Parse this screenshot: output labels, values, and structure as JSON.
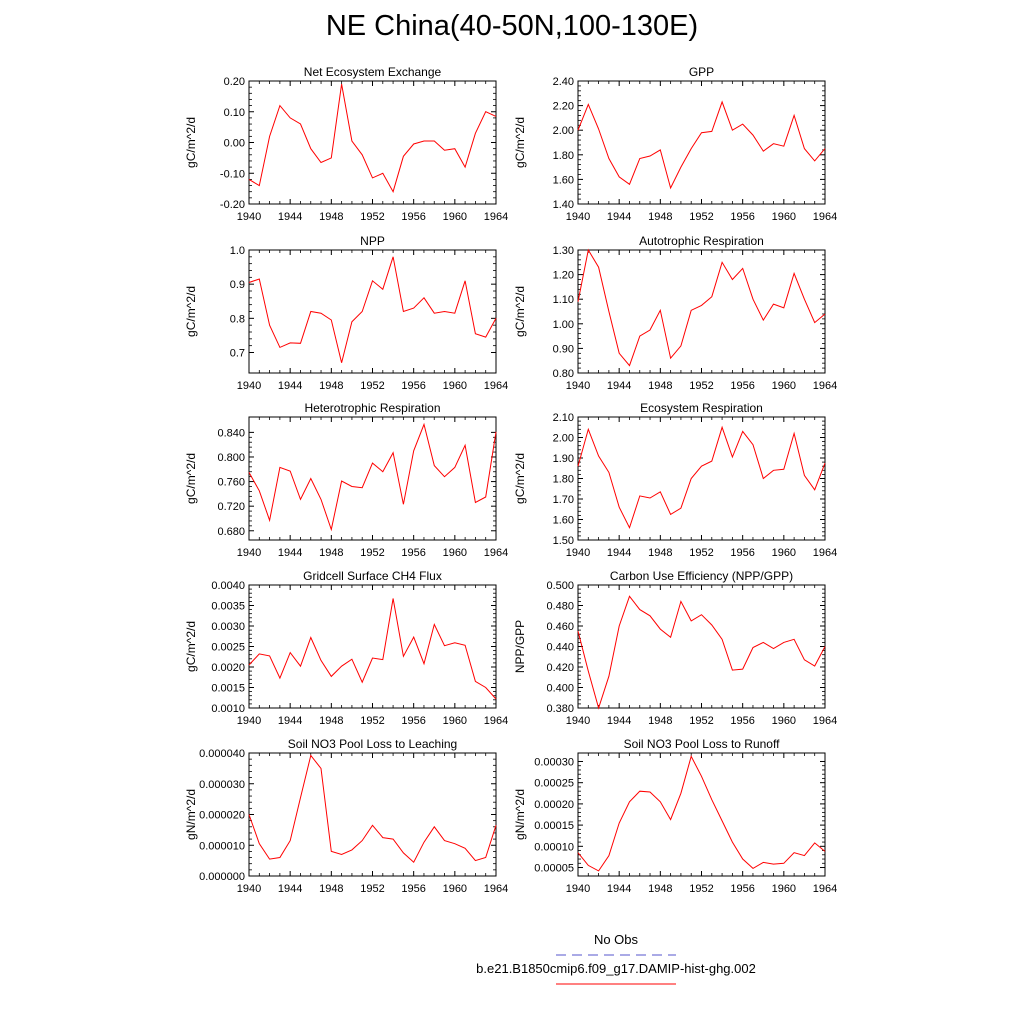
{
  "page_title": "NE China(40-50N,100-130E)",
  "legend": {
    "no_obs_label": "No Obs",
    "no_obs_color": "#5555cc",
    "model_label": "b.e21.B1850cmip6.f09_g17.DAMIP-hist-ghg.002",
    "model_color": "#ff0000"
  },
  "chart_data": [
    {
      "type": "line",
      "title": "Net Ecosystem Exchange",
      "ylabel": "gC/m^2/d",
      "ylim": [
        -0.2,
        0.2
      ],
      "yticks": [
        -0.2,
        -0.1,
        0.0,
        0.1,
        0.2
      ],
      "ytick_labels": [
        "-0.20",
        "-0.10",
        "0.00",
        "0.10",
        "0.20"
      ],
      "xlim": [
        1940,
        1964
      ],
      "xticks": [
        1940,
        1944,
        1948,
        1952,
        1956,
        1960,
        1964
      ],
      "xtick_labels": [
        "1940",
        "1944",
        "1948",
        "1952",
        "1956",
        "1960",
        "1964"
      ],
      "series": [
        {
          "x": [
            1940,
            1941,
            1942,
            1943,
            1944,
            1945,
            1946,
            1947,
            1948,
            1949,
            1950,
            1951,
            1952,
            1953,
            1954,
            1955,
            1956,
            1957,
            1958,
            1959,
            1960,
            1961,
            1962,
            1963,
            1964
          ],
          "values": [
            -0.12,
            -0.14,
            0.02,
            0.12,
            0.08,
            0.06,
            -0.02,
            -0.065,
            -0.05,
            0.19,
            0.005,
            -0.04,
            -0.115,
            -0.1,
            -0.16,
            -0.045,
            -0.005,
            0.005,
            0.005,
            -0.025,
            -0.02,
            -0.08,
            0.03,
            0.1,
            0.085
          ]
        }
      ]
    },
    {
      "type": "line",
      "title": "GPP",
      "ylabel": "gC/m^2/d",
      "ylim": [
        1.4,
        2.4
      ],
      "yticks": [
        1.4,
        1.6,
        1.8,
        2.0,
        2.2,
        2.4
      ],
      "ytick_labels": [
        "1.40",
        "1.60",
        "1.80",
        "2.00",
        "2.20",
        "2.40"
      ],
      "xlim": [
        1940,
        1964
      ],
      "xticks": [
        1940,
        1944,
        1948,
        1952,
        1956,
        1960,
        1964
      ],
      "xtick_labels": [
        "1940",
        "1944",
        "1948",
        "1952",
        "1956",
        "1960",
        "1964"
      ],
      "series": [
        {
          "x": [
            1940,
            1941,
            1942,
            1943,
            1944,
            1945,
            1946,
            1947,
            1948,
            1949,
            1950,
            1951,
            1952,
            1953,
            1954,
            1955,
            1956,
            1957,
            1958,
            1959,
            1960,
            1961,
            1962,
            1963,
            1964
          ],
          "values": [
            2.0,
            2.21,
            2.01,
            1.77,
            1.62,
            1.56,
            1.77,
            1.79,
            1.84,
            1.53,
            1.7,
            1.85,
            1.98,
            1.99,
            2.23,
            2.0,
            2.05,
            1.96,
            1.83,
            1.89,
            1.87,
            2.12,
            1.85,
            1.75,
            1.85
          ]
        }
      ]
    },
    {
      "type": "line",
      "title": "NPP",
      "ylabel": "gC/m^2/d",
      "ylim": [
        0.64,
        1.0
      ],
      "yticks": [
        0.7,
        0.8,
        0.9,
        1.0
      ],
      "ytick_labels": [
        "0.7",
        "0.8",
        "0.9",
        "1.0"
      ],
      "xlim": [
        1940,
        1964
      ],
      "xticks": [
        1940,
        1944,
        1948,
        1952,
        1956,
        1960,
        1964
      ],
      "xtick_labels": [
        "1940",
        "1944",
        "1948",
        "1952",
        "1956",
        "1960",
        "1964"
      ],
      "series": [
        {
          "x": [
            1940,
            1941,
            1942,
            1943,
            1944,
            1945,
            1946,
            1947,
            1948,
            1949,
            1950,
            1951,
            1952,
            1953,
            1954,
            1955,
            1956,
            1957,
            1958,
            1959,
            1960,
            1961,
            1962,
            1963,
            1964
          ],
          "values": [
            0.905,
            0.915,
            0.78,
            0.715,
            0.728,
            0.727,
            0.82,
            0.815,
            0.795,
            0.67,
            0.79,
            0.82,
            0.91,
            0.885,
            0.98,
            0.82,
            0.83,
            0.86,
            0.815,
            0.82,
            0.815,
            0.91,
            0.755,
            0.745,
            0.8
          ]
        }
      ]
    },
    {
      "type": "line",
      "title": "Autotrophic Respiration",
      "ylabel": "gC/m^2/d",
      "ylim": [
        0.8,
        1.3
      ],
      "yticks": [
        0.8,
        0.9,
        1.0,
        1.1,
        1.2,
        1.3
      ],
      "ytick_labels": [
        "0.80",
        "0.90",
        "1.00",
        "1.10",
        "1.20",
        "1.30"
      ],
      "xlim": [
        1940,
        1964
      ],
      "xticks": [
        1940,
        1944,
        1948,
        1952,
        1956,
        1960,
        1964
      ],
      "xtick_labels": [
        "1940",
        "1944",
        "1948",
        "1952",
        "1956",
        "1960",
        "1964"
      ],
      "series": [
        {
          "x": [
            1940,
            1941,
            1942,
            1943,
            1944,
            1945,
            1946,
            1947,
            1948,
            1949,
            1950,
            1951,
            1952,
            1953,
            1954,
            1955,
            1956,
            1957,
            1958,
            1959,
            1960,
            1961,
            1962,
            1963,
            1964
          ],
          "values": [
            1.09,
            1.3,
            1.23,
            1.05,
            0.88,
            0.83,
            0.95,
            0.975,
            1.055,
            0.86,
            0.91,
            1.055,
            1.075,
            1.11,
            1.25,
            1.18,
            1.225,
            1.1,
            1.015,
            1.08,
            1.065,
            1.205,
            1.1,
            1.005,
            1.04
          ]
        }
      ]
    },
    {
      "type": "line",
      "title": "Heterotrophic Respiration",
      "ylabel": "gC/m^2/d",
      "ylim": [
        0.665,
        0.865
      ],
      "yticks": [
        0.68,
        0.72,
        0.76,
        0.8,
        0.84
      ],
      "ytick_labels": [
        "0.680",
        "0.720",
        "0.760",
        "0.800",
        "0.840"
      ],
      "xlim": [
        1940,
        1964
      ],
      "xticks": [
        1940,
        1944,
        1948,
        1952,
        1956,
        1960,
        1964
      ],
      "xtick_labels": [
        "1940",
        "1944",
        "1948",
        "1952",
        "1956",
        "1960",
        "1964"
      ],
      "series": [
        {
          "x": [
            1940,
            1941,
            1942,
            1943,
            1944,
            1945,
            1946,
            1947,
            1948,
            1949,
            1950,
            1951,
            1952,
            1953,
            1954,
            1955,
            1956,
            1957,
            1958,
            1959,
            1960,
            1961,
            1962,
            1963,
            1964
          ],
          "values": [
            0.775,
            0.745,
            0.697,
            0.783,
            0.777,
            0.731,
            0.765,
            0.731,
            0.682,
            0.761,
            0.752,
            0.75,
            0.79,
            0.776,
            0.807,
            0.723,
            0.81,
            0.853,
            0.786,
            0.768,
            0.783,
            0.819,
            0.726,
            0.735,
            0.841
          ]
        }
      ]
    },
    {
      "type": "line",
      "title": "Ecosystem Respiration",
      "ylabel": "gC/m^2/d",
      "ylim": [
        1.5,
        2.1
      ],
      "yticks": [
        1.5,
        1.6,
        1.7,
        1.8,
        1.9,
        2.0,
        2.1
      ],
      "ytick_labels": [
        "1.50",
        "1.60",
        "1.70",
        "1.80",
        "1.90",
        "2.00",
        "2.10"
      ],
      "xlim": [
        1940,
        1964
      ],
      "xticks": [
        1940,
        1944,
        1948,
        1952,
        1956,
        1960,
        1964
      ],
      "xtick_labels": [
        "1940",
        "1944",
        "1948",
        "1952",
        "1956",
        "1960",
        "1964"
      ],
      "series": [
        {
          "x": [
            1940,
            1941,
            1942,
            1943,
            1944,
            1945,
            1946,
            1947,
            1948,
            1949,
            1950,
            1951,
            1952,
            1953,
            1954,
            1955,
            1956,
            1957,
            1958,
            1959,
            1960,
            1961,
            1962,
            1963,
            1964
          ],
          "values": [
            1.86,
            2.04,
            1.91,
            1.83,
            1.66,
            1.56,
            1.715,
            1.705,
            1.735,
            1.625,
            1.655,
            1.8,
            1.86,
            1.885,
            2.05,
            1.905,
            2.03,
            1.965,
            1.8,
            1.84,
            1.845,
            2.02,
            1.815,
            1.745,
            1.875
          ]
        }
      ]
    },
    {
      "type": "line",
      "title": "Gridcell Surface CH4 Flux",
      "ylabel": "gC/m^2/d",
      "ylim": [
        0.001,
        0.004
      ],
      "yticks": [
        0.001,
        0.0015,
        0.002,
        0.0025,
        0.003,
        0.0035,
        0.004
      ],
      "ytick_labels": [
        "0.0010",
        "0.0015",
        "0.0020",
        "0.0025",
        "0.0030",
        "0.0035",
        "0.0040"
      ],
      "xlim": [
        1940,
        1964
      ],
      "xticks": [
        1940,
        1944,
        1948,
        1952,
        1956,
        1960,
        1964
      ],
      "xtick_labels": [
        "1940",
        "1944",
        "1948",
        "1952",
        "1956",
        "1960",
        "1964"
      ],
      "series": [
        {
          "x": [
            1940,
            1941,
            1942,
            1943,
            1944,
            1945,
            1946,
            1947,
            1948,
            1949,
            1950,
            1951,
            1952,
            1953,
            1954,
            1955,
            1956,
            1957,
            1958,
            1959,
            1960,
            1961,
            1962,
            1963,
            1964
          ],
          "values": [
            0.00205,
            0.00232,
            0.00227,
            0.00173,
            0.00235,
            0.00202,
            0.00272,
            0.00216,
            0.00177,
            0.00202,
            0.00219,
            0.00163,
            0.00222,
            0.00218,
            0.00367,
            0.00226,
            0.00273,
            0.00208,
            0.00304,
            0.00252,
            0.00259,
            0.00253,
            0.00165,
            0.0015,
            0.00122
          ]
        }
      ]
    },
    {
      "type": "line",
      "title": "Carbon Use Efficiency (NPP/GPP)",
      "ylabel": "NPP/GPP",
      "ylim": [
        0.38,
        0.5
      ],
      "yticks": [
        0.38,
        0.4,
        0.42,
        0.44,
        0.46,
        0.48,
        0.5
      ],
      "ytick_labels": [
        "0.380",
        "0.400",
        "0.420",
        "0.440",
        "0.460",
        "0.480",
        "0.500"
      ],
      "xlim": [
        1940,
        1964
      ],
      "xticks": [
        1940,
        1944,
        1948,
        1952,
        1956,
        1960,
        1964
      ],
      "xtick_labels": [
        "1940",
        "1944",
        "1948",
        "1952",
        "1956",
        "1960",
        "1964"
      ],
      "series": [
        {
          "x": [
            1940,
            1941,
            1942,
            1943,
            1944,
            1945,
            1946,
            1947,
            1948,
            1949,
            1950,
            1951,
            1952,
            1953,
            1954,
            1955,
            1956,
            1957,
            1958,
            1959,
            1960,
            1961,
            1962,
            1963,
            1964
          ],
          "values": [
            0.455,
            0.416,
            0.38,
            0.411,
            0.46,
            0.489,
            0.476,
            0.47,
            0.457,
            0.449,
            0.484,
            0.465,
            0.471,
            0.461,
            0.447,
            0.417,
            0.418,
            0.439,
            0.444,
            0.438,
            0.444,
            0.447,
            0.427,
            0.421,
            0.44
          ]
        }
      ]
    },
    {
      "type": "line",
      "title": "Soil NO3 Pool Loss to Leaching",
      "ylabel": "gN/m^2/d",
      "ylim": [
        0.0,
        4e-05
      ],
      "yticks": [
        0.0,
        1e-05,
        2e-05,
        3e-05,
        4e-05
      ],
      "ytick_labels": [
        "0.000000",
        "0.000010",
        "0.000020",
        "0.000030",
        "0.000040"
      ],
      "xlim": [
        1940,
        1964
      ],
      "xticks": [
        1940,
        1944,
        1948,
        1952,
        1956,
        1960,
        1964
      ],
      "xtick_labels": [
        "1940",
        "1944",
        "1948",
        "1952",
        "1956",
        "1960",
        "1964"
      ],
      "series": [
        {
          "x": [
            1940,
            1941,
            1942,
            1943,
            1944,
            1945,
            1946,
            1947,
            1948,
            1949,
            1950,
            1951,
            1952,
            1953,
            1954,
            1955,
            1956,
            1957,
            1958,
            1959,
            1960,
            1961,
            1962,
            1963,
            1964
          ],
          "values": [
            2e-05,
            1.05e-05,
            5.5e-06,
            6e-06,
            1.15e-05,
            2.55e-05,
            3.92e-05,
            3.5e-05,
            8e-06,
            7e-06,
            8.5e-06,
            1.15e-05,
            1.65e-05,
            1.25e-05,
            1.2e-05,
            7.5e-06,
            4.5e-06,
            1.1e-05,
            1.6e-05,
            1.15e-05,
            1.05e-05,
            9e-06,
            5e-06,
            6e-06,
            1.65e-05
          ]
        }
      ]
    },
    {
      "type": "line",
      "title": "Soil NO3 Pool Loss to Runoff",
      "ylabel": "gN/m^2/d",
      "ylim": [
        3e-05,
        0.00032
      ],
      "yticks": [
        5e-05,
        0.0001,
        0.00015,
        0.0002,
        0.00025,
        0.0003
      ],
      "ytick_labels": [
        "0.00005",
        "0.00010",
        "0.00015",
        "0.00020",
        "0.00025",
        "0.00030"
      ],
      "xlim": [
        1940,
        1964
      ],
      "xticks": [
        1940,
        1944,
        1948,
        1952,
        1956,
        1960,
        1964
      ],
      "xtick_labels": [
        "1940",
        "1944",
        "1948",
        "1952",
        "1956",
        "1960",
        "1964"
      ],
      "series": [
        {
          "x": [
            1940,
            1941,
            1942,
            1943,
            1944,
            1945,
            1946,
            1947,
            1948,
            1949,
            1950,
            1951,
            1952,
            1953,
            1954,
            1955,
            1956,
            1957,
            1958,
            1959,
            1960,
            1961,
            1962,
            1963,
            1964
          ],
          "values": [
            8.5e-05,
            5.5e-05,
            4.2e-05,
            7.8e-05,
            0.000155,
            0.000205,
            0.00023,
            0.000228,
            0.000205,
            0.000163,
            0.000225,
            0.000312,
            0.000265,
            0.00021,
            0.00016,
            0.00011,
            7e-05,
            4.8e-05,
            6.2e-05,
            5.8e-05,
            6e-05,
            8.5e-05,
            7.8e-05,
            0.000108,
            8.8e-05
          ]
        }
      ]
    }
  ]
}
